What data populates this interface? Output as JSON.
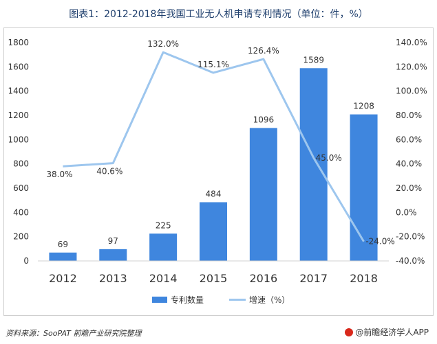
{
  "title": "图表1：2012-2018年我国工业无人机申请专利情况（单位：件，%）",
  "source": "资料来源：SooPAT  前瞻产业研究院整理",
  "brand": "@前瞻经济学人APP",
  "chart_data": {
    "type": "bar",
    "categories": [
      "2012",
      "2013",
      "2014",
      "2015",
      "2016",
      "2017",
      "2018"
    ],
    "series": [
      {
        "name": "专利数量",
        "type": "bar",
        "axis": "left",
        "values": [
          69,
          97,
          225,
          484,
          1096,
          1589,
          1208
        ],
        "labels": [
          "69",
          "97",
          "225",
          "484",
          "1096",
          "1589",
          "1208"
        ],
        "color": "#3f86de"
      },
      {
        "name": "增速（%）",
        "type": "line",
        "axis": "right",
        "values": [
          38.0,
          40.6,
          132.0,
          115.1,
          126.4,
          45.0,
          -24.0
        ],
        "labels": [
          "38.0%",
          "40.6%",
          "132.0%",
          "115.1%",
          "126.4%",
          "45.0%",
          "-24.0%"
        ],
        "color": "#9dc6ee"
      }
    ],
    "y_left": {
      "min": 0,
      "max": 1800,
      "ticks": [
        "0",
        "200",
        "400",
        "600",
        "800",
        "1000",
        "1200",
        "1400",
        "1600",
        "1800"
      ]
    },
    "y_right": {
      "min": -40,
      "max": 140,
      "ticks": [
        "-40.0%",
        "-20.0%",
        "0.0%",
        "20.0%",
        "40.0%",
        "60.0%",
        "80.0%",
        "100.0%",
        "120.0%",
        "140.0%"
      ]
    },
    "legend_position": "bottom-center",
    "grid": false
  }
}
